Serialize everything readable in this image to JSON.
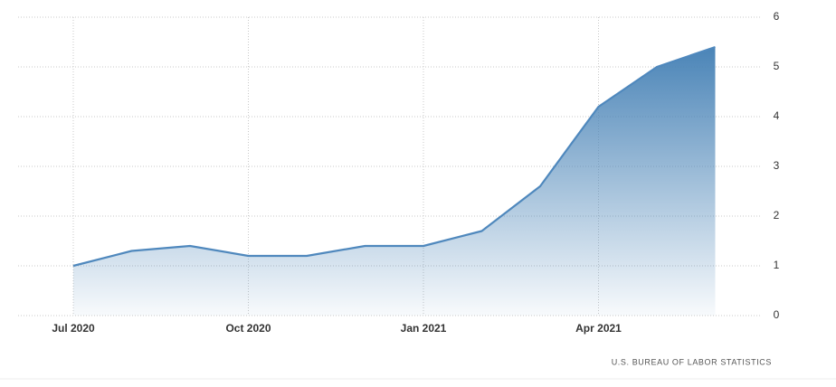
{
  "chart_data": {
    "type": "area",
    "categories": [
      "Jul 2020",
      null,
      null,
      "Oct 2020",
      null,
      null,
      "Jan 2021",
      null,
      null,
      "Apr 2021",
      null,
      null
    ],
    "values": [
      1.0,
      1.3,
      1.4,
      1.2,
      1.2,
      1.4,
      1.4,
      1.7,
      2.6,
      4.2,
      5.0,
      5.4
    ],
    "color": "#4f88bd",
    "ylim": [
      0,
      6
    ],
    "yticks": [
      0,
      1,
      2,
      3,
      4,
      5,
      6
    ],
    "grid": true,
    "source": "U.S. BUREAU OF LABOR STATISTICS"
  }
}
